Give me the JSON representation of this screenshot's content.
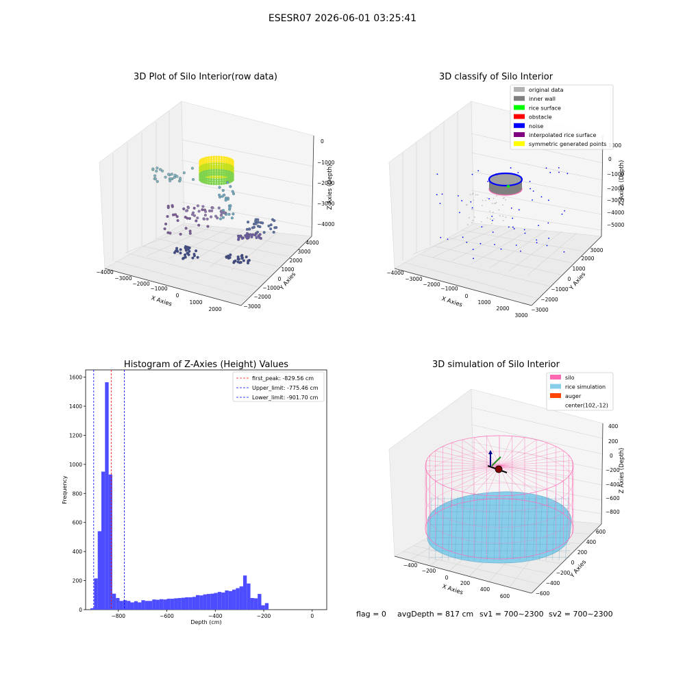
{
  "figure": {
    "title": "ESESR07 2026-06-01 03:25:41",
    "footer": {
      "flag": "flag = 0",
      "avg_depth": "avgDepth = 817 cm",
      "sv1": "sv1 = 700~2300",
      "sv2": "sv2 = 700~2300"
    }
  },
  "chart_data": [
    {
      "type": "scatter",
      "projection": "3d",
      "title": "3D Plot of Silo Interior(row data)",
      "xlabel": "X Axies",
      "ylabel": "Y Axies",
      "zlabel": "Z Axies (Depth)",
      "xticks": [
        "−4000",
        "−3000",
        "−2000",
        "−1000",
        "0",
        "1000",
        "2000"
      ],
      "yticks": [
        "−3000",
        "−2000",
        "−1000",
        "0",
        "1000",
        "2000",
        "3000",
        "4000"
      ],
      "zticks": [
        "0",
        "−1000",
        "−2000",
        "−3000",
        "−4000"
      ],
      "xlim": [
        -4200,
        2800
      ],
      "ylim": [
        -3500,
        4500
      ],
      "zlim": [
        -4700,
        300
      ],
      "grid": true,
      "colormap": "viridis"
    },
    {
      "type": "scatter",
      "projection": "3d",
      "title": "3D classify of Silo Interior",
      "xlabel": "X Axies",
      "ylabel": "Y Axies",
      "zlabel": "Z Axies (Depth)",
      "xticks": [
        "−4000",
        "−3000",
        "−2000",
        "−1000",
        "0",
        "1000",
        "2000",
        "3000"
      ],
      "yticks": [
        "−3000",
        "−2000",
        "−1000",
        "0",
        "1000",
        "2000",
        "3000"
      ],
      "zticks": [
        "1000",
        "0",
        "−1000",
        "−2000",
        "−3000",
        "−4000",
        "−5000"
      ],
      "xlim": [
        -4200,
        3200
      ],
      "ylim": [
        -3300,
        3300
      ],
      "zlim": [
        -5300,
        1200
      ],
      "grid": true,
      "legend": {
        "placement": "top-right",
        "entries": [
          {
            "label": "original data",
            "color": "#b3b3b3"
          },
          {
            "label": "inner wall",
            "color": "#808080"
          },
          {
            "label": "rice surface",
            "color": "#00ff00"
          },
          {
            "label": "obstacle",
            "color": "#ff0000"
          },
          {
            "label": "noise",
            "color": "#0000ff"
          },
          {
            "label": "interpolated rice surface",
            "color": "#800080"
          },
          {
            "label": "symmetric generated points",
            "color": "#ffff00"
          }
        ]
      }
    },
    {
      "type": "histogram",
      "title": "Histogram of Z-Axies (Height) Values",
      "xlabel": "Depth (cm)",
      "ylabel": "Frequency",
      "bar_color": "#4d4dff",
      "bin_start": -915,
      "bin_width": 15,
      "counts": [
        10,
        215,
        540,
        950,
        1565,
        930,
        110,
        80,
        60,
        65,
        60,
        50,
        58,
        50,
        65,
        60,
        60,
        70,
        68,
        72,
        70,
        75,
        75,
        78,
        80,
        82,
        85,
        85,
        88,
        100,
        98,
        105,
        108,
        110,
        115,
        122,
        118,
        132,
        128,
        138,
        148,
        160,
        235,
        180,
        80,
        78,
        108,
        30,
        45
      ],
      "xlim": [
        -935,
        60
      ],
      "ylim": [
        0,
        1650
      ],
      "xticks": [
        -800,
        -600,
        -400,
        -200,
        0
      ],
      "xtick_labels": [
        "−800",
        "−600",
        "−400",
        "−200",
        "0"
      ],
      "yticks": [
        0,
        200,
        400,
        600,
        800,
        1000,
        1200,
        1400,
        1600
      ],
      "grid": false,
      "vlines": [
        {
          "label": "first_peak: -829.56 cm",
          "x": -829.56,
          "color": "#ff0000"
        },
        {
          "label": "Upper_limit: -775.46 cm",
          "x": -775.46,
          "color": "#0000ff"
        },
        {
          "label": "Lower_limit: -901.70 cm",
          "x": -901.7,
          "color": "#0000ff"
        }
      ],
      "legend": {
        "placement": "top-right"
      }
    },
    {
      "type": "surface",
      "projection": "3d",
      "title": "3D simulation of Silo Interior",
      "xlabel": "X Axies",
      "ylabel": "Y Axies",
      "zlabel": "Z Axies (Depth)",
      "xticks": [
        "−400",
        "−200",
        "0",
        "200",
        "400",
        "600"
      ],
      "yticks": [
        "−600",
        "−400",
        "−200",
        "0",
        "200",
        "400",
        "600"
      ],
      "zticks": [
        "400",
        "200",
        "0",
        "−200",
        "−400",
        "−600",
        "−800"
      ],
      "xlim": [
        -500,
        700
      ],
      "ylim": [
        -700,
        700
      ],
      "zlim": [
        -900,
        450
      ],
      "grid": true,
      "legend": {
        "placement": "top-right",
        "entries": [
          {
            "label": "silo",
            "color": "#ff69b4"
          },
          {
            "label": "rice simulation",
            "color": "#87ceeb"
          },
          {
            "label": "auger",
            "color": "#ff4500"
          },
          {
            "label": "center(102,-12)",
            "color": ""
          }
        ]
      }
    }
  ]
}
